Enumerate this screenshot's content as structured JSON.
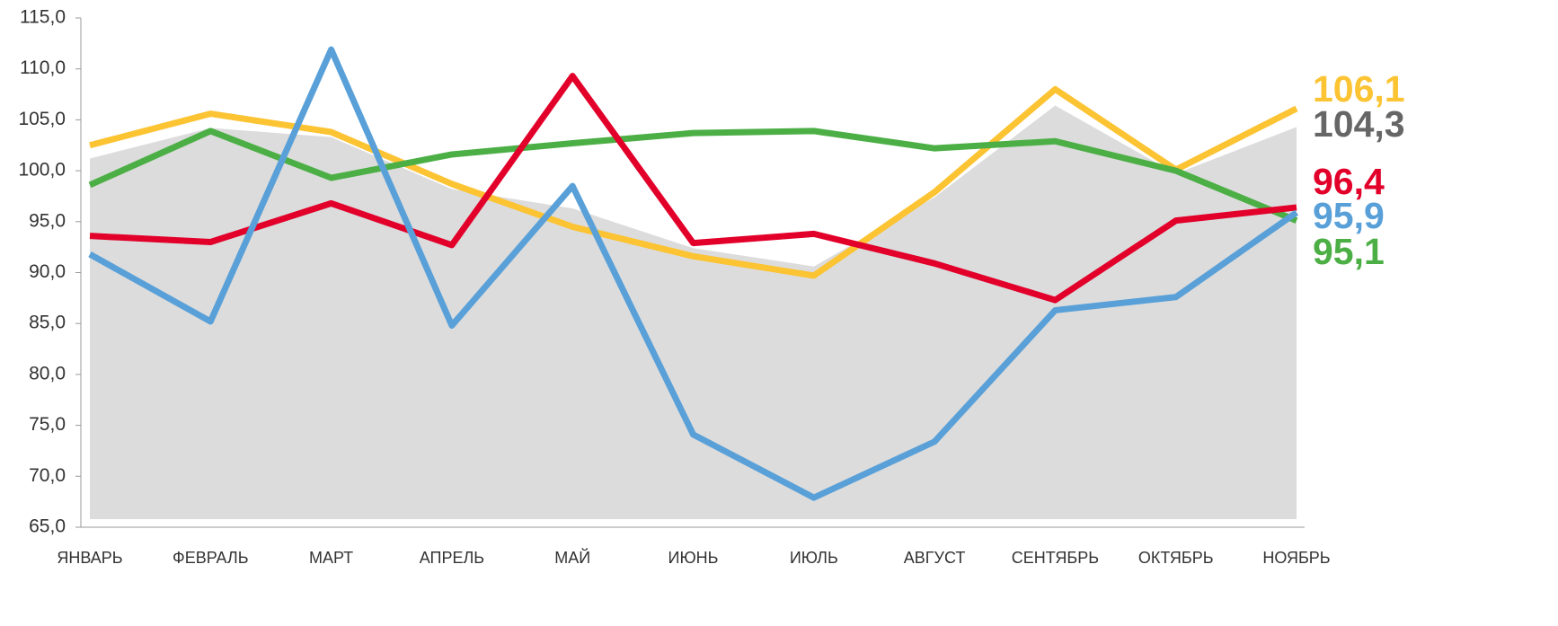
{
  "chart_data": {
    "type": "line",
    "categories": [
      "ЯНВАРЬ",
      "ФЕВРАЛЬ",
      "МАРТ",
      "АПРЕЛЬ",
      "МАЙ",
      "ИЮНЬ",
      "ИЮЛЬ",
      "АВГУСТ",
      "СЕНТЯБРЬ",
      "ОКТЯБРЬ",
      "НОЯБРЬ"
    ],
    "ylim": [
      65,
      115
    ],
    "yticks": [
      {
        "value": 65,
        "label": "65,0"
      },
      {
        "value": 70,
        "label": "70,0"
      },
      {
        "value": 75,
        "label": "75,0"
      },
      {
        "value": 80,
        "label": "80,0"
      },
      {
        "value": 85,
        "label": "85,0"
      },
      {
        "value": 90,
        "label": "90,0"
      },
      {
        "value": 95,
        "label": "95,0"
      },
      {
        "value": 100,
        "label": "100,0"
      },
      {
        "value": 105,
        "label": "105,0"
      },
      {
        "value": 110,
        "label": "110,0"
      },
      {
        "value": 115,
        "label": "115,0"
      }
    ],
    "series": [
      {
        "color": "#dcdcdc",
        "label_color": "#666666",
        "style": "area",
        "values": [
          101.2,
          104.2,
          103.3,
          98.2,
          96.3,
          92.4,
          90.6,
          97.4,
          106.4,
          99.7,
          104.3
        ],
        "value_labels": [
          null,
          null,
          null,
          null,
          null,
          null,
          null,
          null,
          null,
          null,
          "104,3"
        ]
      },
      {
        "color": "#fcc332",
        "values": [
          102.5,
          105.6,
          103.8,
          98.7,
          94.5,
          91.6,
          89.7,
          97.9,
          108.0,
          100.1,
          106.1
        ],
        "value_labels": [
          null,
          null,
          null,
          null,
          null,
          null,
          null,
          null,
          null,
          null,
          "106,1"
        ]
      },
      {
        "color": "#4caf45",
        "values": [
          98.6,
          103.9,
          99.3,
          101.6,
          102.7,
          103.7,
          103.9,
          102.2,
          102.9,
          100.0,
          95.1
        ],
        "value_labels": [
          null,
          null,
          null,
          null,
          null,
          null,
          null,
          null,
          null,
          null,
          "95,1"
        ]
      },
      {
        "color": "#e2002a",
        "values": [
          93.6,
          93.0,
          96.8,
          92.7,
          109.3,
          92.9,
          93.8,
          90.9,
          87.3,
          95.1,
          96.4
        ],
        "value_labels": [
          null,
          null,
          null,
          null,
          null,
          null,
          null,
          null,
          null,
          null,
          "96,4"
        ]
      },
      {
        "color": "#59a0d8",
        "values": [
          91.8,
          85.2,
          111.9,
          84.8,
          98.5,
          74.1,
          67.9,
          73.4,
          86.3,
          87.6,
          95.9
        ],
        "value_labels": [
          null,
          null,
          null,
          null,
          null,
          null,
          null,
          null,
          null,
          null,
          "95,9"
        ]
      }
    ]
  }
}
